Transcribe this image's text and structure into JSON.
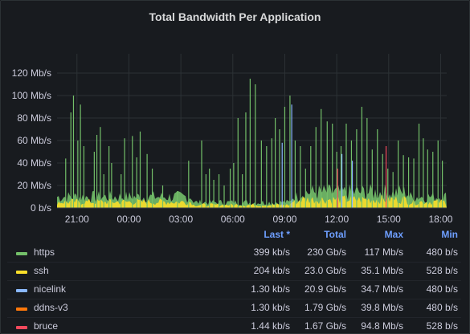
{
  "panel": {
    "title": "Total Bandwidth Per Application"
  },
  "chart_data": {
    "type": "area",
    "title": "Total Bandwidth Per Application",
    "yunit": "Mb/s",
    "ylim": [
      0,
      130
    ],
    "yticks": [
      "0 b/s",
      "20 Mb/s",
      "40 Mb/s",
      "60 Mb/s",
      "80 Mb/s",
      "100 Mb/s",
      "120 Mb/s"
    ],
    "ytick_values": [
      0,
      20,
      40,
      60,
      80,
      100,
      120
    ],
    "xlim_hours": [
      19.25,
      20.25
    ],
    "xticks": [
      "21:00",
      "00:00",
      "03:00",
      "06:00",
      "09:00",
      "12:00",
      "15:00",
      "18:00"
    ],
    "grid": true,
    "series": [
      {
        "name": "https",
        "color": "#73bf69"
      },
      {
        "name": "ssh",
        "color": "#fade2a"
      },
      {
        "name": "nicelink",
        "color": "#8ab8ff"
      },
      {
        "name": "ddns-v3",
        "color": "#ff780a"
      },
      {
        "name": "bruce",
        "color": "#f2495c"
      }
    ],
    "spikes": [
      {
        "series": "https",
        "points": [
          [
            1.0,
            44
          ],
          [
            1.6,
            85
          ],
          [
            1.9,
            100
          ],
          [
            2.4,
            60
          ],
          [
            2.7,
            92
          ],
          [
            3.1,
            55
          ],
          [
            4.3,
            50
          ],
          [
            4.6,
            65
          ],
          [
            5.0,
            72
          ],
          [
            5.4,
            30
          ],
          [
            6.0,
            55
          ],
          [
            6.3,
            40
          ],
          [
            7.4,
            30
          ],
          [
            7.8,
            62
          ],
          [
            8.7,
            64
          ],
          [
            9.2,
            45
          ],
          [
            9.6,
            68
          ],
          [
            10.4,
            48
          ],
          [
            11.0,
            35
          ],
          [
            12.2,
            20
          ],
          [
            13.9,
            15
          ],
          [
            15.2,
            42
          ],
          [
            16.7,
            60
          ],
          [
            17.2,
            30
          ],
          [
            17.6,
            35
          ],
          [
            18.1,
            25
          ],
          [
            18.7,
            30
          ],
          [
            19.3,
            20
          ],
          [
            20.0,
            35
          ],
          [
            20.4,
            40
          ],
          [
            20.9,
            80
          ],
          [
            21.4,
            30
          ],
          [
            21.8,
            85
          ],
          [
            22.3,
            115
          ],
          [
            22.9,
            110
          ],
          [
            23.6,
            60
          ],
          [
            24.2,
            55
          ],
          [
            24.8,
            62
          ],
          [
            25.2,
            80
          ],
          [
            25.7,
            70
          ],
          [
            26.3,
            90
          ],
          [
            26.9,
            100
          ],
          [
            27.5,
            60
          ],
          [
            28.1,
            55
          ],
          [
            28.7,
            35
          ],
          [
            29.3,
            55
          ],
          [
            29.9,
            72
          ],
          [
            30.5,
            88
          ],
          [
            31.2,
            77
          ],
          [
            31.8,
            75
          ],
          [
            32.3,
            50
          ],
          [
            32.8,
            55
          ],
          [
            33.4,
            75
          ],
          [
            34.0,
            60
          ],
          [
            34.6,
            70
          ],
          [
            35.2,
            90
          ],
          [
            35.8,
            80
          ],
          [
            36.4,
            52
          ],
          [
            37.0,
            70
          ],
          [
            37.6,
            48
          ],
          [
            38.2,
            35
          ],
          [
            38.8,
            32
          ],
          [
            39.4,
            60
          ],
          [
            40.0,
            47
          ],
          [
            40.6,
            45
          ],
          [
            41.2,
            44
          ],
          [
            41.8,
            75
          ],
          [
            42.3,
            62
          ],
          [
            42.8,
            52
          ],
          [
            43.4,
            50
          ],
          [
            44.0,
            60
          ],
          [
            44.5,
            42
          ]
        ]
      },
      {
        "series": "nicelink",
        "points": [
          [
            26.0,
            58
          ],
          [
            27.1,
            92
          ],
          [
            32.9,
            48
          ],
          [
            34.1,
            42
          ]
        ]
      },
      {
        "series": "bruce",
        "points": [
          [
            38.0,
            55
          ],
          [
            32.4,
            35
          ]
        ]
      }
    ]
  },
  "legend": {
    "headers": {
      "last": "Last *",
      "total": "Total",
      "max": "Max",
      "min": "Min"
    },
    "rows": [
      {
        "name": "https",
        "color": "#73bf69",
        "last": "399 kb/s",
        "total": "230 Gb/s",
        "max": "117 Mb/s",
        "min": "480 b/s"
      },
      {
        "name": "ssh",
        "color": "#fade2a",
        "last": "204 kb/s",
        "total": "23.0 Gb/s",
        "max": "35.1 Mb/s",
        "min": "528 b/s"
      },
      {
        "name": "nicelink",
        "color": "#8ab8ff",
        "last": "1.30 kb/s",
        "total": "20.9 Gb/s",
        "max": "34.7 Mb/s",
        "min": "480 b/s"
      },
      {
        "name": "ddns-v3",
        "color": "#ff780a",
        "last": "1.30 kb/s",
        "total": "1.79 Gb/s",
        "max": "39.8 Mb/s",
        "min": "480 b/s"
      },
      {
        "name": "bruce",
        "color": "#f2495c",
        "last": "1.44 kb/s",
        "total": "1.67 Gb/s",
        "max": "94.8 Mb/s",
        "min": "528 b/s"
      }
    ]
  }
}
